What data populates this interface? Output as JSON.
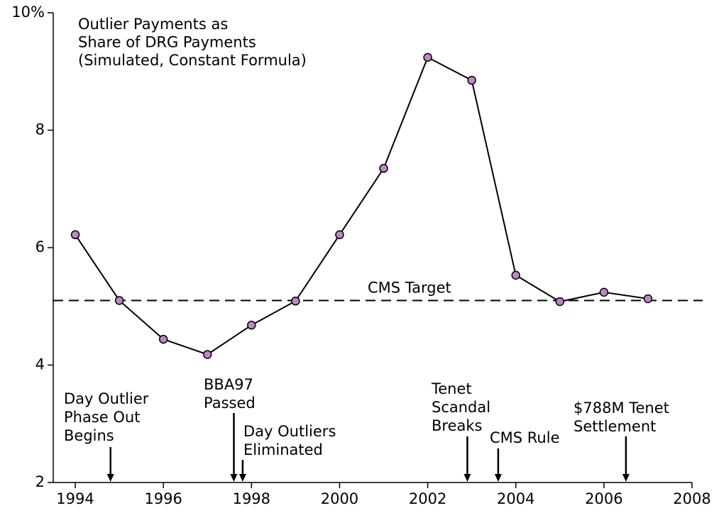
{
  "chart_data": {
    "type": "line",
    "title": [
      "Outlier Payments as",
      "Share of DRG Payments",
      "(Simulated, Constant Formula)"
    ],
    "x": [
      1994,
      1995,
      1996,
      1997,
      1998,
      1999,
      2000,
      2001,
      2002,
      2003,
      2004,
      2005,
      2006,
      2007
    ],
    "series": [
      {
        "color": "#c084c8",
        "values": [
          6.22,
          5.1,
          4.44,
          4.18,
          4.68,
          5.09,
          6.22,
          7.35,
          9.24,
          8.85,
          5.53,
          5.08,
          5.24,
          5.13
        ]
      }
    ],
    "xlim": [
      1993.5,
      2008
    ],
    "xticks": [
      1994,
      1996,
      1998,
      2000,
      2002,
      2004,
      2006,
      2008
    ],
    "ylim": [
      2,
      10
    ],
    "yticks": [
      2,
      4,
      6,
      8,
      {
        "value": 10,
        "label": "10%"
      }
    ],
    "reference_line": {
      "label": "CMS Target",
      "value": 5.1
    },
    "annotations": [
      {
        "text": [
          "Day Outlier",
          "Phase Out",
          "Begins"
        ],
        "x": 1994.8
      },
      {
        "text": [
          "BBA97",
          "Passed"
        ],
        "x": 1997.6
      },
      {
        "text": [
          "Day Outliers",
          "Eliminated"
        ],
        "x": 1997.8
      },
      {
        "text": [
          "Tenet",
          "Scandal",
          "Breaks"
        ],
        "x": 2002.9
      },
      {
        "text": [
          "CMS Rule"
        ],
        "x": 2003.6
      },
      {
        "text": [
          "$788M Tenet",
          "Settlement"
        ],
        "x": 2006.5
      }
    ]
  }
}
